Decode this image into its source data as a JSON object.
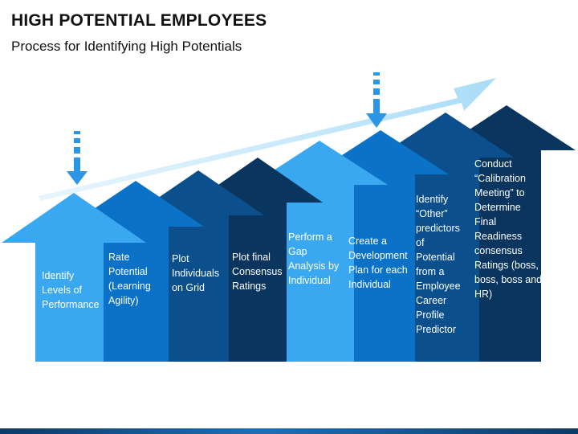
{
  "title": "HIGH POTENTIAL EMPLOYEES",
  "subtitle": "Process for Identifying High Potentials",
  "colors": {
    "light_blue": "#3aa8f0",
    "mid_blue": "#0b72c8",
    "dark_blue": "#0b4f8c",
    "navy": "#0a355f",
    "trend_arrow": "#a8dcf8",
    "marker": "#2b95e6"
  },
  "steps": [
    {
      "label": "Identify Levels of Performance",
      "lines": [
        "Identify",
        "Levels of",
        "Performance"
      ]
    },
    {
      "label": "Rate Potential (Learning Agility)",
      "lines": [
        "Rate",
        "Potential",
        "(Learning",
        "Agility)"
      ]
    },
    {
      "label": "Plot Individuals on Grid",
      "lines": [
        "Plot",
        "Individuals",
        "on Grid"
      ]
    },
    {
      "label": "Plot final Consensus Ratings",
      "lines": [
        "Plot final",
        "Consensus",
        "Ratings"
      ]
    },
    {
      "label": "Perform a Gap Analysis by Individual",
      "lines": [
        "Perform a",
        "Gap",
        "Analysis by",
        "Individual"
      ]
    },
    {
      "label": "Create a Development Plan for each Individual",
      "lines": [
        "Create a",
        "Development",
        "Plan for each",
        "Individual"
      ]
    },
    {
      "label": "Identify “Other” predictors of Potential from a Employee Career Profile Predictor",
      "lines": [
        "Identify",
        "“Other”",
        "predictors",
        "of",
        "Potential",
        "from a",
        "Employee",
        "Career",
        "Profile",
        "Predictor"
      ]
    },
    {
      "label": "Conduct “Calibration Meeting” to Determine Final Readiness consensus Ratings (boss, boss, boss and HR)",
      "lines": [
        "Conduct",
        "“Calibration",
        "Meeting” to",
        "Determine",
        "Final",
        "Readiness",
        "consensus",
        "Ratings (boss,",
        "boss, boss and",
        "HR)"
      ]
    }
  ]
}
